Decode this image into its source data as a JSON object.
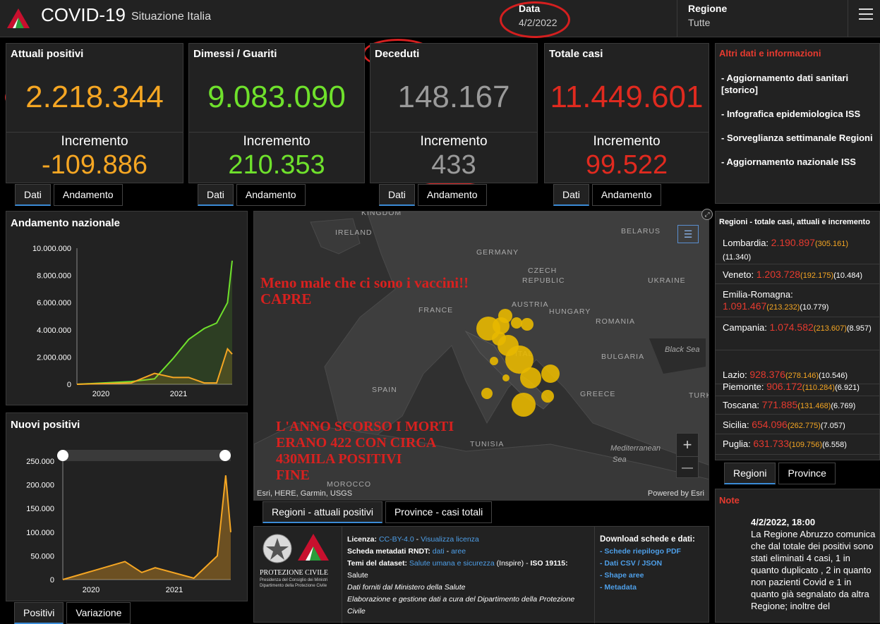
{
  "header": {
    "title": "COVID-19",
    "subtitle": "Situazione Italia",
    "date_label": "Data",
    "date_value": "4/2/2022",
    "region_label": "Regione",
    "region_value": "Tutte",
    "menu_icon": "hamburger-icon",
    "logo_icon": "protezione-civile-logo"
  },
  "cards": [
    {
      "title": "Attuali positivi",
      "value": "2.218.344",
      "incr_label": "Incremento",
      "incr": "-109.886",
      "color": "#f5a623",
      "tabs": [
        "Dati",
        "Andamento"
      ]
    },
    {
      "title": "Dimessi / Guariti",
      "value": "9.083.090",
      "incr_label": "Incremento",
      "incr": "210.353",
      "color": "#6fe12c",
      "tabs": [
        "Dati",
        "Andamento"
      ]
    },
    {
      "title": "Deceduti",
      "value": "148.167",
      "incr_label": "Incremento",
      "incr": "433",
      "color": "#9a9a9a",
      "tabs": [
        "Dati",
        "Andamento"
      ]
    },
    {
      "title": "Totale casi",
      "value": "11.449.601",
      "incr_label": "Incremento",
      "incr": "99.522",
      "color": "#e02a1f",
      "tabs": [
        "Dati",
        "Andamento"
      ]
    }
  ],
  "info": {
    "title": "Altri dati e informazioni",
    "items": [
      "- Aggiornamento dati sanitari [storico]",
      "- Infografica epidemiologica ISS",
      "- Sorveglianza settimanale Regioni",
      "- Aggiornamento nazionale ISS"
    ]
  },
  "andamento": {
    "title": "Andamento nazionale",
    "yticks": [
      "10.000.000",
      "8.000.000",
      "6.000.000",
      "4.000.000",
      "2.000.000",
      "0"
    ],
    "xticks": [
      "2020",
      "2021"
    ]
  },
  "nuovi": {
    "title": "Nuovi positivi",
    "yticks": [
      "250.000",
      "200.000",
      "150.000",
      "100.000",
      "50.000",
      "0"
    ],
    "xticks": [
      "2020",
      "2021"
    ],
    "tabs": [
      "Positivi",
      "Variazione"
    ]
  },
  "chart_data": [
    {
      "type": "line",
      "title": "Andamento nazionale",
      "x": [
        "2020-02",
        "2020-06",
        "2020-10",
        "2021-01",
        "2021-04",
        "2021-07",
        "2021-10",
        "2022-01",
        "2022-02"
      ],
      "series": [
        {
          "color": "#6fe12c",
          "values": [
            0,
            200000,
            400000,
            1900000,
            3300000,
            4100000,
            4500000,
            6000000,
            9083090
          ]
        },
        {
          "color": "#f5a623",
          "values": [
            0,
            100000,
            800000,
            500000,
            500000,
            100000,
            100000,
            2600000,
            2218344
          ]
        }
      ],
      "ylim": [
        0,
        10000000
      ],
      "xticks": [
        "2020",
        "2021"
      ]
    },
    {
      "type": "area",
      "title": "Nuovi positivi",
      "x": [
        "2020-02",
        "2020-11",
        "2021-01",
        "2021-03",
        "2021-07",
        "2021-12",
        "2022-01",
        "2022-02"
      ],
      "values": [
        0,
        38000,
        15000,
        25000,
        3000,
        50000,
        220000,
        100000
      ],
      "ylim": [
        0,
        250000
      ],
      "xticks": [
        "2020",
        "2021"
      ]
    }
  ],
  "map": {
    "countries": [
      "KINGDOM",
      "IRELAND",
      "BELARUS",
      "GERMANY",
      "CZECH",
      "REPUBLIC",
      "UKRAINE",
      "FRANCE",
      "AUSTRIA",
      "HUNGARY",
      "ROMANIA",
      "Black Sea",
      "BULGARIA",
      "ITAL",
      "SPAIN",
      "GREECE",
      "TURK",
      "TUNISIA",
      "Mediterranean",
      "Sea",
      "MOROCCO"
    ],
    "attribution": "Esri, HERE, Garmin, USGS",
    "powered": "Powered by Esri",
    "annotation1": [
      "Meno male che ci sono i vaccini!!",
      "CAPRE"
    ],
    "annotation2": [
      "L'ANNO SCORSO I MORTI",
      "ERANO 422 CON CIRCA",
      "430MILA POSITIVI",
      "FINE"
    ],
    "tabs": [
      "Regioni - attuali positivi",
      "Province - casi totali"
    ],
    "zoom_in": "+",
    "zoom_out": "—"
  },
  "regioni": {
    "title": "Regioni - totale casi, attuali e incremento",
    "rows": [
      {
        "name": "Lombardia:",
        "total": "2.190.897",
        "active": "(305.161)",
        "incr": "(11.340)"
      },
      {
        "name": "Veneto:",
        "total": "1.203.728",
        "active": "(192.175)",
        "incr": "(10.484)"
      },
      {
        "name": "Emilia-Romagna:",
        "total": "1.091.467",
        "active": "(213.232)",
        "incr": "(10.779)"
      },
      {
        "name": "Campania:",
        "total": "1.074.582",
        "active": "(213.607)",
        "incr": "(8.957)"
      },
      {
        "name": "Lazio:",
        "total": "928.376",
        "active": "(278.146)",
        "incr": "(10.546)"
      },
      {
        "name": "Piemonte:",
        "total": "906.172",
        "active": "(110.284)",
        "incr": "(6.921)"
      },
      {
        "name": "Toscana:",
        "total": "771.885",
        "active": "(131.468)",
        "incr": "(6.769)"
      },
      {
        "name": "Sicilia:",
        "total": "654.096",
        "active": "(262.775)",
        "incr": "(7.057)"
      },
      {
        "name": "Puglia:",
        "total": "631.733",
        "active": "(109.756)",
        "incr": "(6.558)"
      }
    ],
    "tabs": [
      "Regioni",
      "Province"
    ]
  },
  "licenza": {
    "l1a": "Licenza:",
    "l1b": "CC-BY-4.0",
    "l1c": " - ",
    "l1d": "Visualizza licenza",
    "l2a": "Scheda metadati RNDT:",
    "l2b": "dati",
    "l2c": " - ",
    "l2d": "aree",
    "l3a": "Temi del dataset:",
    "l3b": "Salute umana e sicurezza",
    "l3c": " (Inspire) - ",
    "l3d": "ISO 19115:",
    "l4": "Salute",
    "l5": "Dati forniti dal Ministero della Salute",
    "l6": "Elaborazione e gestione dati a cura del Dipartimento della Protezione Civile"
  },
  "download": {
    "title": "Download schede e dati:",
    "items": [
      "Schede riepilogo PDF",
      "Dati CSV / JSON",
      "Shape aree",
      "Metadata"
    ]
  },
  "logos": {
    "pc_title": "PROTEZIONE CIVILE",
    "pc_sub1": "Presidenza del Consiglio dei Ministri",
    "pc_sub2": "Dipartimento della Protezione Civile"
  },
  "note": {
    "title": "Note",
    "date": "4/2/2022, 18:00",
    "text": "La Regione Abruzzo comunica che dal totale dei positivi sono stati eliminati 4 casi, 1 in quanto duplicato , 2 in quanto non pazienti Covid e 1 in quanto già segnalato da altra Regione; inoltre del"
  }
}
